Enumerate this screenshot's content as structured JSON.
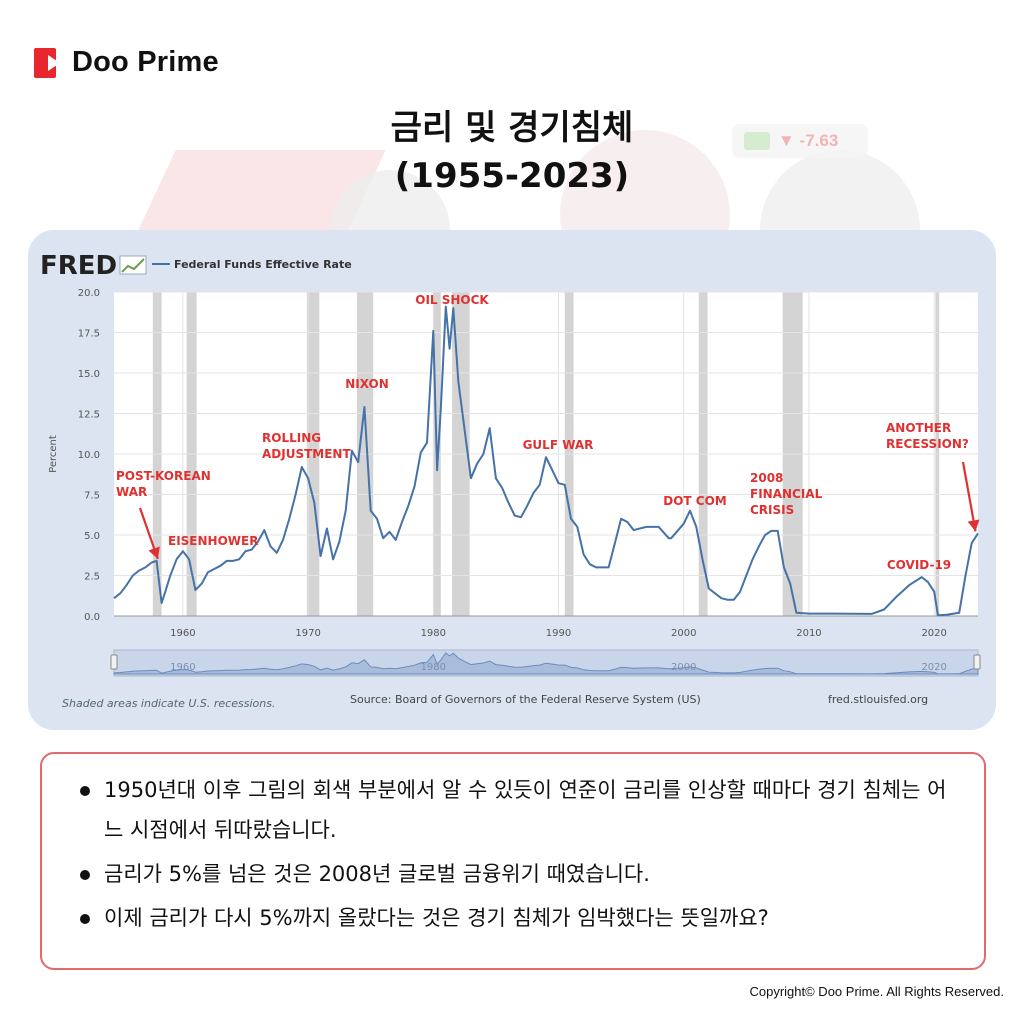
{
  "brand": {
    "name": "Doo Prime",
    "copyright": "Copyright© Doo Prime. All Rights Reserved."
  },
  "ticker": {
    "value": "▼ -7.63"
  },
  "title": {
    "line1": "금리 및 경기침체",
    "line2": "(1955-2023)"
  },
  "chart": {
    "source_logo": "FRED",
    "legend": "Federal Funds Effective Rate",
    "shaded_note": "Shaded areas indicate U.S. recessions.",
    "source_text": "Source: Board of Governors of the Federal Reserve System (US)",
    "site": "fred.stlouisfed.org"
  },
  "chart_data": {
    "type": "line",
    "title": "Federal Funds Effective Rate",
    "xlabel": "",
    "ylabel": "Percent",
    "xlim": [
      1954.5,
      2023.5
    ],
    "ylim": [
      0,
      20
    ],
    "x_ticks": [
      1960,
      1970,
      1980,
      1990,
      2000,
      2010,
      2020
    ],
    "y_ticks": [
      "0.0",
      "2.5",
      "5.0",
      "7.5",
      "10.0",
      "12.5",
      "15.0",
      "17.5",
      "20.0"
    ],
    "grid": true,
    "legend_position": "top-left",
    "line_color": "#4572a7",
    "recession_color": "#cccccc",
    "recessions": [
      [
        1957.6,
        1958.3
      ],
      [
        1960.3,
        1961.1
      ],
      [
        1969.9,
        1970.9
      ],
      [
        1973.9,
        1975.2
      ],
      [
        1980.0,
        1980.6
      ],
      [
        1981.5,
        1982.9
      ],
      [
        1990.5,
        1991.2
      ],
      [
        2001.2,
        2001.9
      ],
      [
        2007.9,
        2009.5
      ],
      [
        2020.1,
        2020.4
      ]
    ],
    "series": [
      {
        "name": "Federal Funds Effective Rate",
        "x": [
          1954.5,
          1955.0,
          1955.5,
          1956.0,
          1956.5,
          1957.0,
          1957.5,
          1957.9,
          1958.3,
          1958.6,
          1959.0,
          1959.5,
          1960.0,
          1960.5,
          1961.0,
          1961.5,
          1962.0,
          1962.5,
          1963.0,
          1963.5,
          1964.0,
          1964.5,
          1965.0,
          1965.5,
          1966.0,
          1966.5,
          1967.0,
          1967.5,
          1968.0,
          1968.5,
          1969.0,
          1969.5,
          1970.0,
          1970.5,
          1971.0,
          1971.5,
          1972.0,
          1972.5,
          1973.0,
          1973.5,
          1974.0,
          1974.5,
          1975.0,
          1975.5,
          1976.0,
          1976.5,
          1977.0,
          1977.5,
          1978.0,
          1978.5,
          1979.0,
          1979.5,
          1980.0,
          1980.3,
          1980.6,
          1981.0,
          1981.3,
          1981.6,
          1982.0,
          1982.5,
          1983.0,
          1983.5,
          1984.0,
          1984.5,
          1985.0,
          1985.5,
          1986.0,
          1986.5,
          1987.0,
          1987.5,
          1988.0,
          1988.5,
          1989.0,
          1989.5,
          1990.0,
          1990.5,
          1991.0,
          1991.5,
          1992.0,
          1992.5,
          1993.0,
          1994.0,
          1994.5,
          1995.0,
          1995.5,
          1996.0,
          1997.0,
          1998.0,
          1998.8,
          1999.0,
          2000.0,
          2000.5,
          2001.0,
          2001.5,
          2002.0,
          2003.0,
          2003.5,
          2004.0,
          2004.5,
          2005.0,
          2005.5,
          2006.0,
          2006.5,
          2007.0,
          2007.5,
          2008.0,
          2008.5,
          2009.0,
          2010.0,
          2012.0,
          2015.0,
          2016.0,
          2017.0,
          2018.0,
          2019.0,
          2019.5,
          2020.0,
          2020.3,
          2021.0,
          2022.0,
          2022.5,
          2023.0,
          2023.5
        ],
        "values": [
          1.1,
          1.4,
          1.9,
          2.5,
          2.8,
          3.0,
          3.3,
          3.4,
          0.8,
          1.5,
          2.5,
          3.5,
          4.0,
          3.5,
          1.6,
          2.0,
          2.7,
          2.9,
          3.1,
          3.4,
          3.4,
          3.5,
          4.0,
          4.1,
          4.6,
          5.3,
          4.3,
          3.9,
          4.7,
          6.0,
          7.5,
          9.2,
          8.5,
          7.0,
          3.7,
          5.4,
          3.5,
          4.6,
          6.5,
          10.2,
          9.5,
          12.9,
          6.5,
          6.0,
          4.8,
          5.2,
          4.7,
          5.8,
          6.8,
          8.0,
          10.1,
          10.7,
          17.6,
          9.0,
          12.8,
          19.1,
          16.5,
          19.0,
          14.5,
          11.5,
          8.5,
          9.4,
          10.0,
          11.6,
          8.5,
          7.9,
          7.0,
          6.2,
          6.1,
          6.8,
          7.6,
          8.1,
          9.8,
          9.0,
          8.2,
          8.1,
          6.0,
          5.5,
          3.8,
          3.2,
          3.0,
          3.0,
          4.5,
          6.0,
          5.8,
          5.3,
          5.5,
          5.5,
          4.8,
          4.8,
          5.7,
          6.5,
          5.5,
          3.5,
          1.7,
          1.1,
          1.0,
          1.0,
          1.5,
          2.5,
          3.5,
          4.3,
          5.0,
          5.25,
          5.25,
          3.0,
          2.0,
          0.2,
          0.15,
          0.15,
          0.13,
          0.4,
          1.2,
          1.9,
          2.4,
          2.1,
          1.5,
          0.05,
          0.08,
          0.2,
          2.5,
          4.5,
          5.1
        ]
      }
    ],
    "annotations": [
      {
        "label": "POST-KOREAN WAR",
        "lines": [
          "POST-KOREAN",
          "WAR"
        ],
        "x": 1958.0,
        "y": 3.4,
        "arrow": true
      },
      {
        "label": "EISENHOWER",
        "lines": [
          "EISENHOWER"
        ],
        "x": 1960.5,
        "y": 4.0
      },
      {
        "label": "ROLLING ADJUSTMENT",
        "lines": [
          "ROLLING",
          "ADJUSTMENT"
        ],
        "x": 1969.5,
        "y": 9.2
      },
      {
        "label": "NIXON",
        "lines": [
          "NIXON"
        ],
        "x": 1974.5,
        "y": 12.9
      },
      {
        "label": "OIL SHOCK",
        "lines": [
          "OIL SHOCK"
        ],
        "x": 1981.0,
        "y": 19.1
      },
      {
        "label": "GULF WAR",
        "lines": [
          "GULF WAR"
        ],
        "x": 1990.0,
        "y": 9.8
      },
      {
        "label": "DOT COM",
        "lines": [
          "DOT COM"
        ],
        "x": 2000.5,
        "y": 6.5
      },
      {
        "label": "2008 FINANCIAL CRISIS",
        "lines": [
          "2008",
          "FINANCIAL",
          "CRISIS"
        ],
        "x": 2007.0,
        "y": 5.25
      },
      {
        "label": "COVID-19",
        "lines": [
          "COVID-19"
        ],
        "x": 2019.5,
        "y": 2.4
      },
      {
        "label": "ANOTHER RECESSION?",
        "lines": [
          "ANOTHER",
          "RECESSION?"
        ],
        "x": 2023.3,
        "y": 5.1,
        "arrow": true
      }
    ],
    "navigator_ticks": [
      1960,
      1980,
      2000,
      2020
    ]
  },
  "notes": [
    "1950년대 이후 그림의 회색 부분에서 알 수 있듯이 연준이 금리를 인상할 때마다 경기 침체는 어느 시점에서 뒤따랐습니다.",
    "금리가 5%를 넘은 것은 2008년 글로벌 금융위기 때였습니다.",
    "이제 금리가 다시 5%까지 올랐다는 것은 경기 침체가 임박했다는 뜻일까요?"
  ]
}
